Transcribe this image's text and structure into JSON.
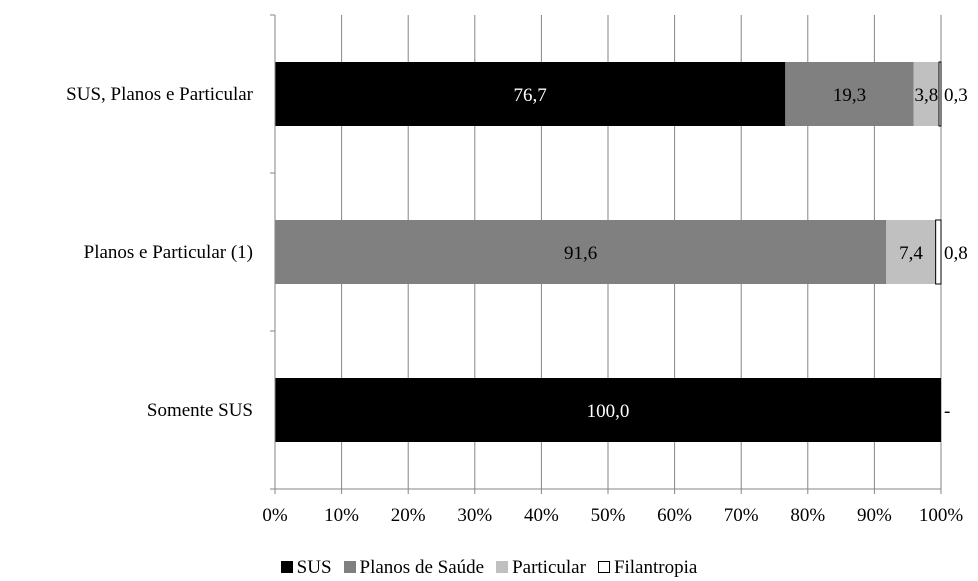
{
  "chart_data": {
    "type": "bar",
    "orientation": "horizontal",
    "stacked": true,
    "percent_stacked": true,
    "categories": [
      "SUS, Planos e Particular",
      "Planos e Particular (1)",
      "Somente SUS"
    ],
    "series": [
      {
        "name": "SUS",
        "color": "#000000",
        "values": [
          76.7,
          0,
          100.0
        ],
        "labels": [
          "76,7",
          "",
          "100,0"
        ]
      },
      {
        "name": "Planos de Saúde",
        "color": "#808080",
        "values": [
          19.3,
          91.6,
          0
        ],
        "labels": [
          "19,3",
          "91,6",
          ""
        ]
      },
      {
        "name": "Particular",
        "color": "#c0c0c0",
        "values": [
          3.8,
          7.4,
          0
        ],
        "labels": [
          "3,8",
          "7,4",
          ""
        ]
      },
      {
        "name": "Filantropia",
        "color": "#ffffff",
        "values": [
          0.3,
          0.8,
          0
        ],
        "labels": [
          "0,3",
          "0,8",
          "-"
        ]
      }
    ],
    "xaxis": {
      "range": [
        0,
        100
      ],
      "ticks": [
        0,
        10,
        20,
        30,
        40,
        50,
        60,
        70,
        80,
        90,
        100
      ],
      "tick_labels": [
        "0%",
        "10%",
        "20%",
        "30%",
        "40%",
        "50%",
        "60%",
        "70%",
        "80%",
        "90%",
        "100%"
      ]
    },
    "grid": "vertical",
    "legend": "bottom",
    "title": "",
    "xlabel": "",
    "ylabel": ""
  }
}
